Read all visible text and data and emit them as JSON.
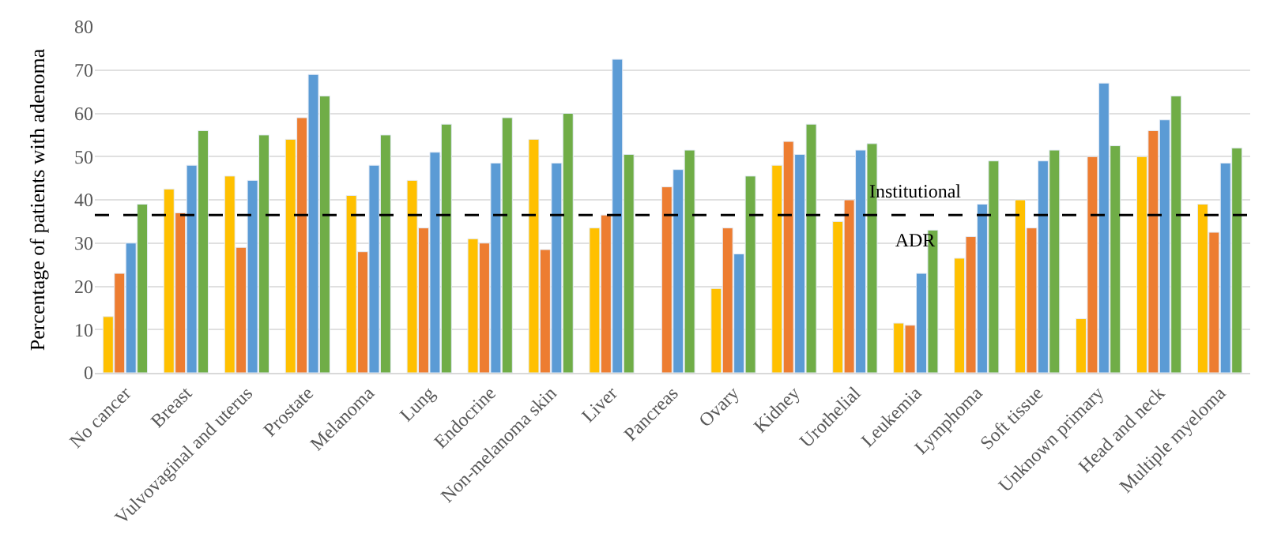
{
  "chart_data": {
    "type": "bar",
    "ylabel": "Percentage of patients with adenoma",
    "categories": [
      "No cancer",
      "Breast",
      "Vulvovaginal and uterus",
      "Prostate",
      "Melanoma",
      "Lung",
      "Endocrine",
      "Non-melanoma skin",
      "Liver",
      "Pancreas",
      "Ovary",
      "Kidney",
      "Urothelial",
      "Leukemia",
      "Lymphoma",
      "Soft tissue",
      "Unknown primary",
      "Head and neck",
      "Multiple myeloma"
    ],
    "series": [
      {
        "color": "#ffc000",
        "values": [
          13,
          42.5,
          45.5,
          54,
          41,
          44.5,
          31,
          54,
          33.5,
          null,
          19.5,
          48,
          35,
          11.5,
          26.5,
          40,
          12.5,
          50,
          39
        ]
      },
      {
        "color": "#ed7d31",
        "values": [
          23,
          37,
          29,
          59,
          28,
          33.5,
          30,
          28.5,
          36.5,
          43,
          33.5,
          53.5,
          40,
          11,
          31.5,
          33.5,
          50,
          56,
          32.5
        ]
      },
      {
        "color": "#5b9bd5",
        "values": [
          30,
          48,
          44.5,
          69,
          48,
          51,
          48.5,
          48.5,
          72.5,
          47,
          27.5,
          50.5,
          51.5,
          23,
          39,
          49,
          67,
          58.5,
          48.5
        ]
      },
      {
        "color": "#70ad47",
        "values": [
          39,
          56,
          55,
          64,
          55,
          57.5,
          59,
          60,
          50.5,
          51.5,
          45.5,
          57.5,
          53,
          33,
          49,
          51.5,
          52.5,
          64,
          52
        ]
      }
    ],
    "ylim": [
      0,
      80
    ],
    "yticks": [
      0,
      10,
      20,
      30,
      40,
      50,
      60,
      70,
      80
    ],
    "grid": "y",
    "ref_lines": [
      {
        "axis": "y",
        "value": 36.5,
        "label": "Institutional\nADR",
        "color": "#000000",
        "line_style": "dashed"
      }
    ]
  }
}
